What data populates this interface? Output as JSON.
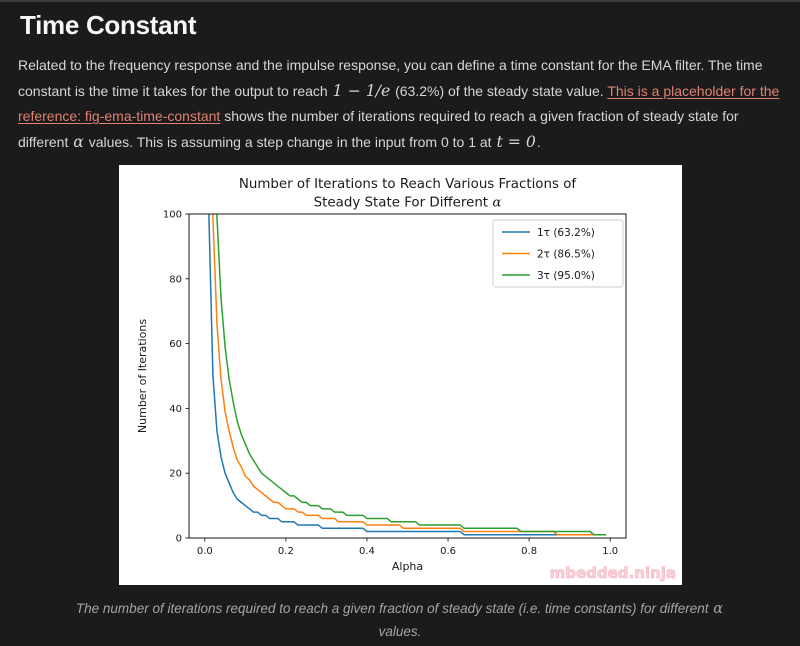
{
  "header": {
    "title": "Time Constant"
  },
  "theme": {
    "background": "#1b1b1d",
    "heading": "#f7f7f7",
    "body_text": "#d8d6d2",
    "link": "#e0826f",
    "caption": "#a8a39d",
    "chart_text": "#1a1a1a",
    "watermark_fill": "#f9c9d4",
    "watermark_stroke": "#f2a4b6",
    "legend_border": "#cccccc"
  },
  "intro": {
    "segments": [
      {
        "style": "normal",
        "text": "Related to the frequency response and the impulse response, you can define a time constant for the EMA filter. The time constant is the time it takes for the output to reach "
      },
      {
        "style": "math",
        "text": "1 − 1/e"
      },
      {
        "style": "normal",
        "text": " (63.2%) of the steady state value. "
      },
      {
        "style": "link",
        "text": "This is a placeholder for the reference: fig-ema-time-constant"
      },
      {
        "style": "normal",
        "text": " shows the number of iterations required to reach a given fraction of steady state for different "
      },
      {
        "style": "math",
        "text": "α"
      },
      {
        "style": "normal",
        "text": " values. This is assuming a step change in the input from 0 to 1 at "
      },
      {
        "style": "math",
        "text": "t = 0"
      },
      {
        "style": "normal",
        "text": "."
      }
    ]
  },
  "figure_caption": {
    "segments": [
      {
        "style": "normal",
        "text": "The number of iterations required to reach a given fraction of steady state (i.e. time constants) for different "
      },
      {
        "style": "math",
        "text": "α"
      },
      {
        "style": "normal",
        "text": " values."
      }
    ]
  },
  "chart_data": {
    "type": "line",
    "title": "Number of Iterations to Reach Various Fractions of\nSteady State For Different α",
    "xlabel": "Alpha",
    "ylabel": "Number of Iterations",
    "xlim": [
      -0.039,
      1.039
    ],
    "ylim": [
      0,
      100
    ],
    "xticks": [
      0.0,
      0.2,
      0.4,
      0.6,
      0.8,
      1.0
    ],
    "xtick_labels": [
      "0.0",
      "0.2",
      "0.4",
      "0.6",
      "0.8",
      "1.0"
    ],
    "yticks": [
      0,
      20,
      40,
      60,
      80,
      100
    ],
    "ytick_labels": [
      "0",
      "20",
      "40",
      "60",
      "80",
      "100"
    ],
    "grid": false,
    "legend_position": "upper right",
    "watermark": "mbedded.ninja",
    "x": [
      0.01,
      0.02,
      0.03,
      0.04,
      0.05,
      0.06,
      0.07,
      0.08,
      0.09,
      0.1,
      0.11,
      0.12,
      0.13,
      0.14,
      0.15,
      0.16,
      0.17,
      0.18,
      0.19,
      0.2,
      0.21,
      0.22,
      0.23,
      0.24,
      0.25,
      0.26,
      0.27,
      0.28,
      0.29,
      0.3,
      0.31,
      0.32,
      0.33,
      0.34,
      0.35,
      0.36,
      0.37,
      0.38,
      0.39,
      0.4,
      0.41,
      0.42,
      0.43,
      0.44,
      0.45,
      0.46,
      0.47,
      0.48,
      0.49,
      0.5,
      0.51,
      0.52,
      0.53,
      0.54,
      0.55,
      0.56,
      0.57,
      0.58,
      0.59,
      0.6,
      0.61,
      0.62,
      0.63,
      0.64,
      0.65,
      0.66,
      0.67,
      0.68,
      0.69,
      0.7,
      0.71,
      0.72,
      0.73,
      0.74,
      0.75,
      0.76,
      0.77,
      0.78,
      0.79,
      0.8,
      0.81,
      0.82,
      0.83,
      0.84,
      0.85,
      0.86,
      0.87,
      0.88,
      0.89,
      0.9,
      0.91,
      0.92,
      0.93,
      0.94,
      0.95,
      0.96,
      0.97,
      0.98,
      0.99
    ],
    "series": [
      {
        "name": "1τ (63.2%)",
        "color": "#1f77b4",
        "values": [
          100,
          50,
          33,
          25,
          20,
          17,
          14,
          12,
          11,
          10,
          9,
          8,
          8,
          7,
          7,
          6,
          6,
          6,
          5,
          5,
          5,
          5,
          4,
          4,
          4,
          4,
          4,
          4,
          3,
          3,
          3,
          3,
          3,
          3,
          3,
          3,
          3,
          3,
          3,
          2,
          2,
          2,
          2,
          2,
          2,
          2,
          2,
          2,
          2,
          2,
          2,
          2,
          2,
          2,
          2,
          2,
          2,
          2,
          2,
          2,
          2,
          2,
          2,
          1,
          1,
          1,
          1,
          1,
          1,
          1,
          1,
          1,
          1,
          1,
          1,
          1,
          1,
          1,
          1,
          1,
          1,
          1,
          1,
          1,
          1,
          1,
          1,
          1,
          1,
          1,
          1,
          1,
          1,
          1,
          1,
          1,
          1,
          1,
          1
        ]
      },
      {
        "name": "2τ (86.5%)",
        "color": "#ff7f0e",
        "values": [
          199,
          99,
          66,
          49,
          39,
          33,
          28,
          24,
          22,
          19,
          18,
          16,
          15,
          14,
          13,
          12,
          11,
          11,
          10,
          9,
          9,
          9,
          8,
          8,
          7,
          7,
          7,
          7,
          6,
          6,
          6,
          6,
          5,
          5,
          5,
          5,
          5,
          5,
          5,
          4,
          4,
          4,
          4,
          4,
          4,
          4,
          4,
          4,
          3,
          3,
          3,
          3,
          3,
          3,
          3,
          3,
          3,
          3,
          3,
          3,
          3,
          3,
          3,
          2,
          2,
          2,
          2,
          2,
          2,
          2,
          2,
          2,
          2,
          2,
          2,
          2,
          2,
          2,
          2,
          2,
          2,
          2,
          2,
          2,
          2,
          2,
          1,
          1,
          1,
          1,
          1,
          1,
          1,
          1,
          1,
          1,
          1,
          1,
          1
        ]
      },
      {
        "name": "3τ (95.0%)",
        "color": "#2ca02c",
        "values": [
          299,
          149,
          99,
          74,
          59,
          49,
          42,
          36,
          32,
          29,
          26,
          24,
          22,
          20,
          19,
          18,
          17,
          16,
          15,
          14,
          13,
          13,
          12,
          11,
          11,
          10,
          10,
          10,
          9,
          9,
          9,
          8,
          8,
          8,
          7,
          7,
          7,
          7,
          7,
          6,
          6,
          6,
          6,
          6,
          6,
          5,
          5,
          5,
          5,
          5,
          5,
          5,
          4,
          4,
          4,
          4,
          4,
          4,
          4,
          4,
          4,
          4,
          4,
          3,
          3,
          3,
          3,
          3,
          3,
          3,
          3,
          3,
          3,
          3,
          3,
          3,
          3,
          2,
          2,
          2,
          2,
          2,
          2,
          2,
          2,
          2,
          2,
          2,
          2,
          2,
          2,
          2,
          2,
          2,
          2,
          1,
          1,
          1,
          1
        ]
      }
    ]
  }
}
